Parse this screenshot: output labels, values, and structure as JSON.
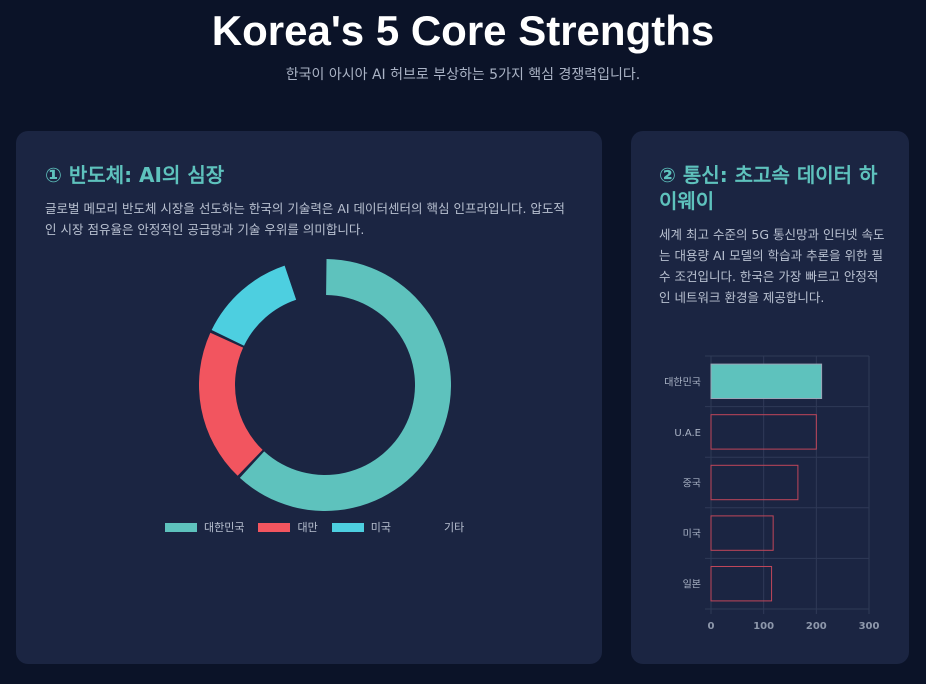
{
  "page": {
    "title": "Korea's 5 Core Strengths",
    "subtitle": "한국이 아시아 AI 허브로 부상하는 5가지 핵심 경쟁력입니다."
  },
  "cards": [
    {
      "title": "① 반도체: AI의 심장",
      "description": "글로벌 메모리 반도체 시장을 선도하는 한국의 기술력은 AI 데이터센터의 핵심 인프라입니다. 압도적인 시장 점유율은 안정적인 공급망과 기술 우위를 의미합니다."
    },
    {
      "title": "② 통신: 초고속 데이터 하이웨이",
      "description": "세계 최고 수준의 5G 통신망과 인터넷 속도는 대용량 AI 모델의 학습과 추론을 위한 필수 조건입니다. 한국은 가장 빠르고 안정적인 네트워크 환경을 제공합니다."
    }
  ],
  "chart_data": [
    {
      "type": "pie",
      "categories": [
        "대한민국",
        "대만",
        "미국",
        "기타"
      ],
      "values": [
        62,
        20,
        13,
        5
      ],
      "colors": [
        "#5ec2bd",
        "#f2555f",
        "#4dcfe0",
        "transparent"
      ],
      "legend_position": "bottom"
    },
    {
      "type": "bar",
      "orientation": "horizontal",
      "categories": [
        "대한민국",
        "U.A.E",
        "중국",
        "미국",
        "일본"
      ],
      "values": [
        210,
        200,
        165,
        118,
        115
      ],
      "xlim": [
        0,
        300
      ],
      "xticks": [
        "0",
        "100",
        "200",
        "300"
      ],
      "colors": {
        "highlight_fill": "#5ec2bd",
        "highlight_stroke": "#9aa6b8",
        "other_stroke": "#c0465a"
      },
      "grid": true
    }
  ]
}
